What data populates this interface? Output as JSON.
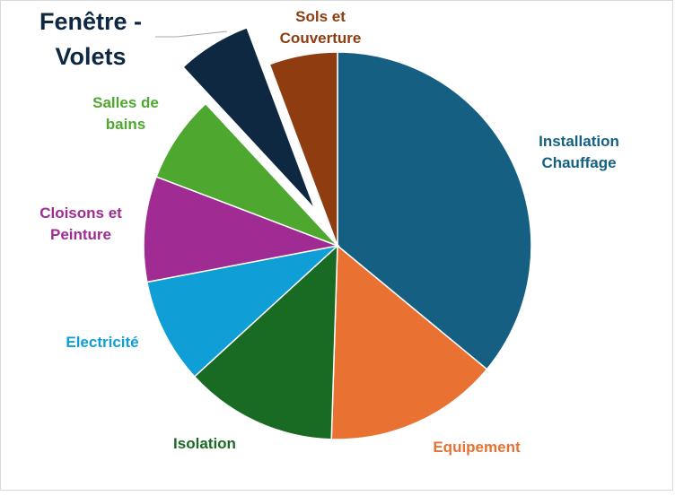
{
  "chart_data": {
    "type": "pie",
    "title": "",
    "legend": "none",
    "slices": [
      {
        "label_lines": [
          "Installation",
          "Chauffage"
        ],
        "value": 36.0,
        "color": "#156082"
      },
      {
        "label_lines": [
          "Equipement"
        ],
        "value": 14.5,
        "color": "#E97132"
      },
      {
        "label_lines": [
          "Isolation"
        ],
        "value": 12.7,
        "color": "#196B24"
      },
      {
        "label_lines": [
          "Electricité"
        ],
        "value": 8.8,
        "color": "#0F9ED5"
      },
      {
        "label_lines": [
          "Cloisons et",
          "Peinture"
        ],
        "value": 8.8,
        "color": "#A02B93"
      },
      {
        "label_lines": [
          "Salles de",
          "bains"
        ],
        "value": 7.3,
        "color": "#4EA72E"
      },
      {
        "label_lines": [
          "Fenêtre -",
          "Volets"
        ],
        "value": 6.2,
        "color": "#0E2841",
        "exploded": true
      },
      {
        "label_lines": [
          "Sols et",
          "Couverture"
        ],
        "value": 5.7,
        "color": "#8F3D10"
      }
    ]
  }
}
